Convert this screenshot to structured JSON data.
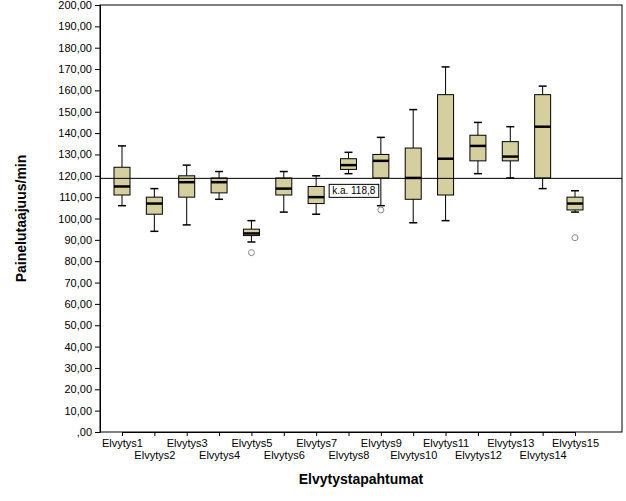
{
  "chart_data": {
    "type": "box",
    "x_label": "Elvytystapahtumat",
    "y_label": "Painelutaajuus/min",
    "categories": [
      "Elvytys1",
      "Elvytys2",
      "Elvytys3",
      "Elvytys4",
      "Elvytys5",
      "Elvytys6",
      "Elvytys7",
      "Elvytys8",
      "Elvytys9",
      "Elvytys10",
      "Elvytys11",
      "Elvytys12",
      "Elvytys13",
      "Elvytys14",
      "Elvytys15"
    ],
    "boxes": [
      {
        "min": 106,
        "q1": 111,
        "median": 115,
        "q3": 124,
        "max": 134,
        "outliers": []
      },
      {
        "min": 94,
        "q1": 102,
        "median": 107,
        "q3": 110,
        "max": 114,
        "outliers": []
      },
      {
        "min": 97,
        "q1": 110,
        "median": 117,
        "q3": 120,
        "max": 125,
        "outliers": []
      },
      {
        "min": 109,
        "q1": 112,
        "median": 117,
        "q3": 119,
        "max": 122,
        "outliers": []
      },
      {
        "min": 89,
        "q1": 92,
        "median": 93,
        "q3": 95,
        "max": 99,
        "outliers": [
          84
        ]
      },
      {
        "min": 103,
        "q1": 111,
        "median": 114,
        "q3": 119,
        "max": 122,
        "outliers": []
      },
      {
        "min": 102,
        "q1": 107,
        "median": 110,
        "q3": 115,
        "max": 120,
        "outliers": []
      },
      {
        "min": 121,
        "q1": 123,
        "median": 125,
        "q3": 128,
        "max": 131,
        "outliers": []
      },
      {
        "min": 106,
        "q1": 119,
        "median": 127,
        "q3": 130,
        "max": 138,
        "outliers": [
          104
        ]
      },
      {
        "min": 98,
        "q1": 109,
        "median": 119,
        "q3": 133,
        "max": 151,
        "outliers": []
      },
      {
        "min": 99,
        "q1": 111,
        "median": 128,
        "q3": 158,
        "max": 171,
        "outliers": []
      },
      {
        "min": 121,
        "q1": 127,
        "median": 134,
        "q3": 139,
        "max": 145,
        "outliers": []
      },
      {
        "min": 119,
        "q1": 127,
        "median": 129,
        "q3": 136,
        "max": 143,
        "outliers": []
      },
      {
        "min": 114,
        "q1": 119,
        "median": 143,
        "q3": 158,
        "max": 162,
        "outliers": []
      },
      {
        "min": 103,
        "q1": 104,
        "median": 107,
        "q3": 110,
        "max": 113,
        "outliers": [
          91
        ]
      }
    ],
    "color": "#d5cf9f",
    "reference_line": {
      "value": 118.8,
      "label": "k.a. 118,8"
    },
    "ylim": [
      0,
      200
    ],
    "yticks": [
      {
        "value": 0,
        "label": ",00"
      },
      {
        "value": 10,
        "label": "10,00"
      },
      {
        "value": 20,
        "label": "20,00"
      },
      {
        "value": 30,
        "label": "30,00"
      },
      {
        "value": 40,
        "label": "40,00"
      },
      {
        "value": 50,
        "label": "50,00"
      },
      {
        "value": 60,
        "label": "60,00"
      },
      {
        "value": 70,
        "label": "70,00"
      },
      {
        "value": 80,
        "label": "80,00"
      },
      {
        "value": 90,
        "label": "90,00"
      },
      {
        "value": 100,
        "label": "100,00"
      },
      {
        "value": 110,
        "label": "110,00"
      },
      {
        "value": 120,
        "label": "120,00"
      },
      {
        "value": 130,
        "label": "130,00"
      },
      {
        "value": 140,
        "label": "140,00"
      },
      {
        "value": 150,
        "label": "150,00"
      },
      {
        "value": 160,
        "label": "160,00"
      },
      {
        "value": 170,
        "label": "170,00"
      },
      {
        "value": 180,
        "label": "180,00"
      },
      {
        "value": 190,
        "label": "190,00"
      },
      {
        "value": 200,
        "label": "200,00"
      }
    ],
    "grid": false
  }
}
